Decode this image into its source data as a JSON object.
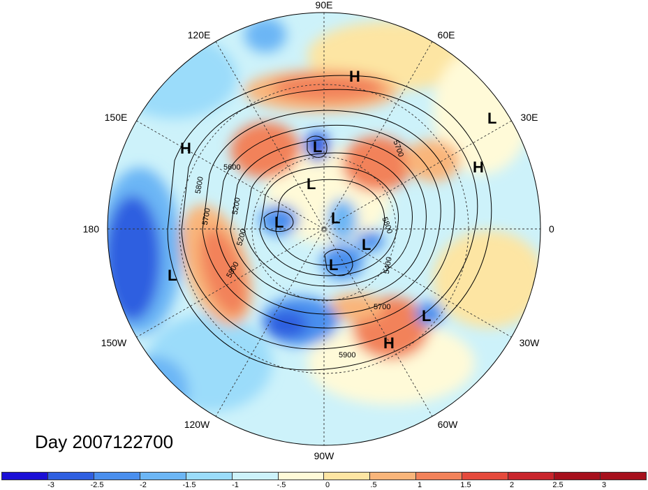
{
  "title": "Day 2007122700",
  "longitude_labels": {
    "lon_90e": "90E",
    "lon_60e": "60E",
    "lon_30e": "30E",
    "lon_0": "0",
    "lon_30w": "30W",
    "lon_60w": "60W",
    "lon_90w": "90W",
    "lon_120w": "120W",
    "lon_150w": "150W",
    "lon_180": "180",
    "lon_150e": "150E",
    "lon_120e": "120E"
  },
  "pressure_centers": [
    {
      "label": "H"
    },
    {
      "label": "L"
    },
    {
      "label": "H"
    },
    {
      "label": "L"
    },
    {
      "label": "H"
    },
    {
      "label": "L"
    },
    {
      "label": "L"
    },
    {
      "label": "L"
    },
    {
      "label": "L"
    },
    {
      "label": "L"
    },
    {
      "label": "L"
    },
    {
      "label": "L"
    },
    {
      "label": "H"
    }
  ],
  "contour_labels": [
    "5600",
    "5800",
    "5700",
    "5200",
    "5200",
    "5800",
    "5700",
    "5400",
    "5700",
    "5800",
    "5900"
  ],
  "colorbar": {
    "colors": [
      "#1b10d6",
      "#2f5fe0",
      "#4a8fee",
      "#6cb6f5",
      "#9bdcfa",
      "#cdf2fa",
      "#fffad8",
      "#fde5a3",
      "#f9b57a",
      "#f2825a",
      "#e54a3c",
      "#c8252c",
      "#a6101c"
    ],
    "tick_labels": [
      "-3",
      "-2.5",
      "-2",
      "-1.5",
      "-1",
      "-.5",
      "0",
      ".5",
      "1",
      "1.5",
      "2",
      "2.5",
      "3"
    ]
  }
}
